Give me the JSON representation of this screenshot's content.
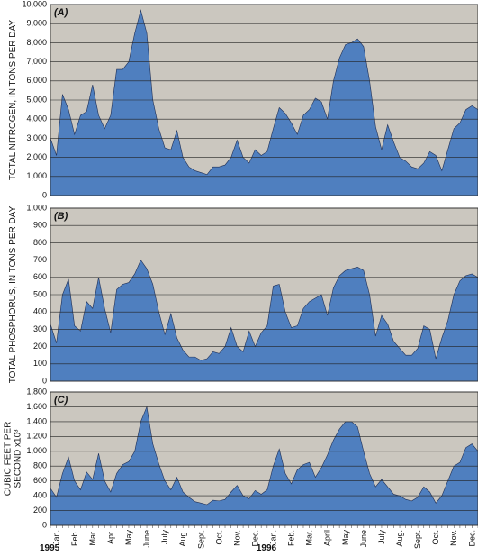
{
  "chart_data": [
    {
      "type": "area",
      "panel_label": "(A)",
      "ylabel": [
        "TOTAL NITROGEN, IN TONS PER DAY"
      ],
      "color": "#4f7fbf",
      "background": "#cbc7bf",
      "grid": true,
      "ylim": [
        0,
        10000
      ],
      "yticks": [
        0,
        {
          "value": 1000,
          "label": "1,000"
        },
        {
          "value": 2000,
          "label": "2,000"
        },
        {
          "value": 3000,
          "label": "3,000"
        },
        {
          "value": 4000,
          "label": "4,000"
        },
        {
          "value": 5000,
          "label": "5,000"
        },
        {
          "value": 6000,
          "label": "6,000"
        },
        {
          "value": 7000,
          "label": "7,000"
        },
        {
          "value": 8000,
          "label": "8,000"
        },
        {
          "value": 9000,
          "label": "9,000"
        },
        {
          "value": 10000,
          "label": "10,000"
        }
      ],
      "values": [
        3000,
        2100,
        5300,
        4500,
        3200,
        4200,
        4400,
        5800,
        4200,
        3500,
        4200,
        6600,
        6600,
        7000,
        8500,
        9700,
        8500,
        5000,
        3500,
        2500,
        2400,
        3400,
        2000,
        1500,
        1300,
        1200,
        1100,
        1500,
        1500,
        1600,
        2000,
        2900,
        2000,
        1700,
        2400,
        2100,
        2300,
        3500,
        4600,
        4300,
        3800,
        3200,
        4200,
        4500,
        5100,
        4900,
        4000,
        6000,
        7200,
        7900,
        8000,
        8200,
        7800,
        6000,
        3600,
        2400,
        3700,
        2800,
        2000,
        1800,
        1500,
        1400,
        1700,
        2300,
        2100,
        1300,
        2400,
        3500,
        3800,
        4500,
        4700,
        4500
      ]
    },
    {
      "type": "area",
      "panel_label": "(B)",
      "ylabel": [
        "TOTAL PHOSPHORUS, IN TONS PER DAY"
      ],
      "color": "#4f7fbf",
      "background": "#cbc7bf",
      "grid": true,
      "ylim": [
        0,
        1000
      ],
      "yticks": [
        0,
        100,
        200,
        300,
        400,
        500,
        600,
        700,
        800,
        900,
        {
          "value": 1000,
          "label": "1,000"
        }
      ],
      "values": [
        330,
        220,
        500,
        590,
        320,
        290,
        460,
        420,
        600,
        420,
        280,
        530,
        560,
        570,
        620,
        700,
        650,
        560,
        400,
        270,
        390,
        250,
        180,
        140,
        140,
        120,
        130,
        170,
        160,
        200,
        310,
        200,
        170,
        290,
        200,
        280,
        320,
        550,
        560,
        400,
        310,
        320,
        420,
        460,
        480,
        500,
        380,
        540,
        610,
        640,
        650,
        660,
        640,
        500,
        260,
        380,
        330,
        230,
        190,
        150,
        150,
        190,
        320,
        300,
        130,
        250,
        350,
        500,
        580,
        610,
        620,
        600
      ]
    },
    {
      "type": "area",
      "panel_label": "(C)",
      "ylabel": [
        "CUBIC FEET PER",
        "SECOND x10³"
      ],
      "color": "#4f7fbf",
      "background": "#cbc7bf",
      "grid": true,
      "ylim": [
        0,
        1800
      ],
      "yticks": [
        0,
        200,
        400,
        600,
        800,
        {
          "value": 1000,
          "label": "1,000"
        },
        {
          "value": 1200,
          "label": "1,200"
        },
        {
          "value": 1400,
          "label": "1,400"
        },
        {
          "value": 1600,
          "label": "1,600"
        },
        {
          "value": 1800,
          "label": "1,800"
        }
      ],
      "values": [
        500,
        380,
        700,
        920,
        600,
        480,
        720,
        620,
        970,
        600,
        450,
        700,
        820,
        860,
        1000,
        1400,
        1600,
        1100,
        830,
        600,
        480,
        650,
        450,
        380,
        320,
        300,
        280,
        340,
        330,
        350,
        450,
        540,
        400,
        360,
        470,
        420,
        480,
        800,
        1030,
        700,
        560,
        750,
        820,
        850,
        650,
        780,
        950,
        1150,
        1300,
        1400,
        1400,
        1330,
        1000,
        700,
        520,
        620,
        520,
        420,
        400,
        350,
        330,
        380,
        520,
        450,
        300,
        400,
        600,
        800,
        850,
        1050,
        1100,
        1000
      ],
      "categories": [
        null,
        "Jan.",
        null,
        null,
        "Feb.",
        null,
        null,
        "Mar.",
        null,
        null,
        "Apr.",
        null,
        null,
        "May",
        null,
        null,
        "June",
        null,
        null,
        "July",
        null,
        null,
        "Aug.",
        null,
        null,
        "Sept.",
        null,
        null,
        "Oct.",
        null,
        null,
        "Nov.",
        null,
        null,
        "Dec.",
        null,
        null,
        "Jan.",
        null,
        null,
        "Feb.",
        null,
        null,
        "Mar.",
        null,
        null,
        "April",
        null,
        null,
        "May",
        null,
        null,
        "June",
        null,
        null,
        "July",
        null,
        null,
        "Aug.",
        null,
        null,
        "Sept.",
        null,
        null,
        "Oct.",
        null,
        null,
        "Nov.",
        null,
        null,
        "Dec.",
        null
      ],
      "years": [
        "1995",
        "1996"
      ]
    }
  ]
}
